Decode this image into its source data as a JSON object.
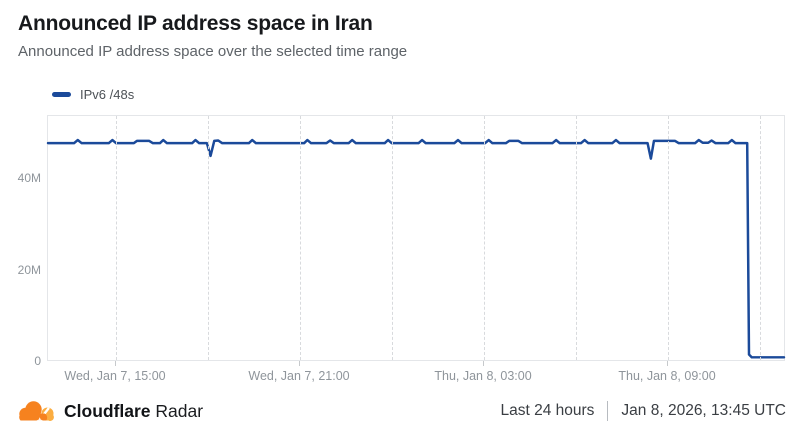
{
  "header": {
    "title": "Announced IP address space in Iran",
    "subtitle": "Announced IP address space over the selected time range"
  },
  "legend": {
    "items": [
      {
        "label": "IPv6 /48s",
        "color": "#1b4a9a"
      }
    ]
  },
  "chart_data": {
    "type": "line",
    "title": "Announced IP address space in Iran",
    "xlabel": "",
    "ylabel": "",
    "unit": "millions of /48s",
    "x_range_hours": [
      0,
      24
    ],
    "ylim": [
      0,
      53.8
    ],
    "grid": "vertical-dashed-only",
    "legend_position": "top-left",
    "y_ticks": [
      {
        "value": 0,
        "label": "0"
      },
      {
        "value": 20,
        "label": "20M"
      },
      {
        "value": 40,
        "label": "40M"
      }
    ],
    "x_gridlines": [
      0.0921,
      0.2168,
      0.3414,
      0.4661,
      0.5908,
      0.7154,
      0.8401,
      0.9648
    ],
    "x_ticks": [
      {
        "pos": 0.0921,
        "label": "Wed, Jan 7, 15:00"
      },
      {
        "pos": 0.3414,
        "label": "Wed, Jan 7, 21:00"
      },
      {
        "pos": 0.5908,
        "label": "Thu, Jan 8, 03:00"
      },
      {
        "pos": 0.8401,
        "label": "Thu, Jan 8, 09:00"
      }
    ],
    "series": [
      {
        "name": "IPv6 /48s",
        "color": "#1b4a9a",
        "stroke_width": 2.5,
        "points_unit": "[hours_from_range_start, value_in_millions]",
        "points": [
          [
            0,
            47.8
          ],
          [
            0.85,
            47.8
          ],
          [
            0.97,
            48.5
          ],
          [
            1.1,
            47.8
          ],
          [
            1.98,
            47.8
          ],
          [
            2.1,
            48.5
          ],
          [
            2.22,
            47.8
          ],
          [
            2.8,
            47.8
          ],
          [
            2.9,
            48.3
          ],
          [
            3.3,
            48.3
          ],
          [
            3.42,
            47.8
          ],
          [
            3.65,
            47.8
          ],
          [
            3.76,
            48.5
          ],
          [
            3.88,
            47.8
          ],
          [
            4.7,
            47.8
          ],
          [
            4.81,
            48.5
          ],
          [
            4.93,
            47.8
          ],
          [
            5.18,
            47.8
          ],
          [
            5.3,
            45.0
          ],
          [
            5.42,
            48.3
          ],
          [
            5.55,
            48.4
          ],
          [
            5.68,
            47.8
          ],
          [
            6.55,
            47.8
          ],
          [
            6.66,
            48.5
          ],
          [
            6.78,
            47.8
          ],
          [
            8.35,
            47.8
          ],
          [
            8.46,
            48.5
          ],
          [
            8.58,
            47.8
          ],
          [
            9.08,
            47.8
          ],
          [
            9.2,
            48.4
          ],
          [
            9.32,
            47.8
          ],
          [
            9.8,
            47.8
          ],
          [
            9.92,
            48.5
          ],
          [
            10.04,
            47.8
          ],
          [
            10.98,
            47.8
          ],
          [
            11.09,
            48.5
          ],
          [
            11.21,
            47.8
          ],
          [
            12.08,
            47.8
          ],
          [
            12.2,
            48.5
          ],
          [
            12.32,
            47.8
          ],
          [
            13.25,
            47.8
          ],
          [
            13.37,
            48.5
          ],
          [
            13.49,
            47.8
          ],
          [
            14.25,
            47.8
          ],
          [
            14.37,
            48.5
          ],
          [
            14.49,
            47.8
          ],
          [
            14.93,
            47.8
          ],
          [
            15.04,
            48.3
          ],
          [
            15.34,
            48.3
          ],
          [
            15.46,
            47.8
          ],
          [
            16.45,
            47.8
          ],
          [
            16.57,
            48.5
          ],
          [
            16.69,
            47.8
          ],
          [
            17.38,
            47.8
          ],
          [
            17.5,
            48.5
          ],
          [
            17.62,
            47.8
          ],
          [
            18.4,
            47.8
          ],
          [
            18.52,
            48.5
          ],
          [
            18.64,
            47.8
          ],
          [
            19.55,
            47.8
          ],
          [
            19.66,
            44.4
          ],
          [
            19.76,
            48.3
          ],
          [
            20.45,
            48.3
          ],
          [
            20.57,
            47.8
          ],
          [
            21.1,
            47.8
          ],
          [
            21.22,
            48.5
          ],
          [
            21.35,
            47.9
          ],
          [
            21.53,
            47.9
          ],
          [
            21.64,
            48.4
          ],
          [
            21.77,
            47.8
          ],
          [
            22.18,
            47.8
          ],
          [
            22.3,
            48.5
          ],
          [
            22.42,
            47.8
          ],
          [
            22.8,
            47.8
          ],
          [
            22.86,
            1.2
          ],
          [
            22.95,
            0.6
          ],
          [
            24,
            0.6
          ]
        ]
      }
    ]
  },
  "footer": {
    "brand_bold": "Cloudflare",
    "brand_regular": "Radar",
    "time_range": "Last 24 hours",
    "timestamp": "Jan 8, 2026, 13:45 UTC"
  },
  "colors": {
    "line": "#1b4a9a",
    "gridline": "#d8dadd",
    "plot_border": "#e4e6e9",
    "axis_label": "#8f959b",
    "title": "#17191c",
    "subtitle": "#5e6368",
    "footer_text": "#3a3e43",
    "logo_orange": "#f6821f",
    "logo_light_orange": "#fbad41"
  }
}
